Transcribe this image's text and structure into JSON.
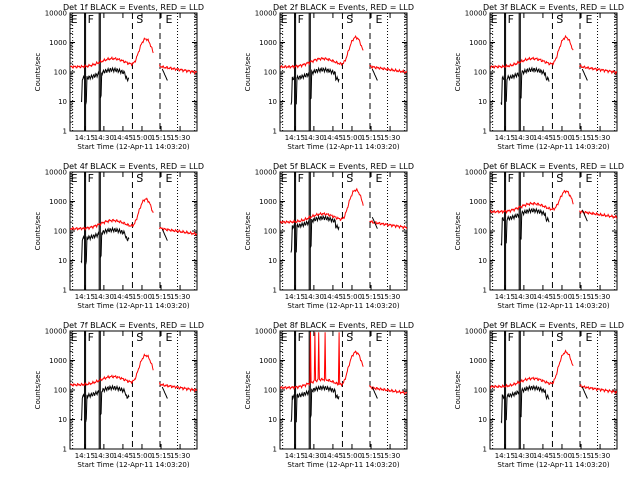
{
  "chart_data": {
    "type": "line",
    "layout": "3x3 grid",
    "y_scale": "log",
    "ylim": [
      1,
      10000
    ],
    "ylabel": "Counts/sec",
    "xlabel": "Start Time (12-Apr-11 14:03:20)",
    "x_tick_labels": [
      "14:15",
      "14:30",
      "14:45",
      "15:00",
      "15:15",
      "15:30"
    ],
    "x_tick_minutes": [
      15,
      30,
      45,
      60,
      75,
      90
    ],
    "xlim_minutes_after_14_00": [
      3.33,
      103.33
    ],
    "y_tick_labels": [
      "1",
      "10",
      "100",
      "1000",
      "10000"
    ],
    "y_tick_values": [
      1,
      10,
      100,
      1000,
      10000
    ],
    "series_colors": {
      "events": "#000000",
      "lld": "#ff0000"
    },
    "period_letters": [
      "E",
      "F",
      "S",
      "E"
    ],
    "panels": [
      {
        "title": "Det 1f BLACK = Events, RED = LLD",
        "events_level": 60,
        "lld_level": 150,
        "peak": 1300,
        "spikes": false
      },
      {
        "title": "Det 2f BLACK = Events, RED = LLD",
        "events_level": 60,
        "lld_level": 150,
        "peak": 1500,
        "spikes": false
      },
      {
        "title": "Det 3f BLACK = Events, RED = LLD",
        "events_level": 60,
        "lld_level": 150,
        "peak": 1500,
        "spikes": false
      },
      {
        "title": "Det 4f BLACK = Events, RED = LLD",
        "events_level": 55,
        "lld_level": 120,
        "peak": 1200,
        "spikes": false
      },
      {
        "title": "Det 5f BLACK = Events, RED = LLD",
        "events_level": 140,
        "lld_level": 200,
        "peak": 2500,
        "spikes": false
      },
      {
        "title": "Det 6f BLACK = Events, RED = LLD",
        "events_level": 250,
        "lld_level": 450,
        "peak": 2000,
        "spikes": false
      },
      {
        "title": "Det 7f BLACK = Events, RED = LLD",
        "events_level": 60,
        "lld_level": 150,
        "peak": 1500,
        "spikes": false
      },
      {
        "title": "Det 8f BLACK = Events, RED = LLD",
        "events_level": 60,
        "lld_level": 120,
        "peak": 2000,
        "spikes": true
      },
      {
        "title": "Det 9f BLACK = Events, RED = LLD",
        "events_level": 60,
        "lld_level": 130,
        "peak": 2000,
        "spikes": false
      }
    ]
  }
}
